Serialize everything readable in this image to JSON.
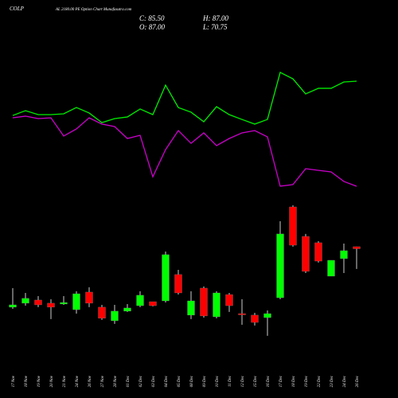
{
  "chart_data": {
    "type": "candlestick",
    "title": "COLP",
    "subtitle": "AL 2180.00 PE Option Chart Munafasutra.com",
    "ohlc_labels": {
      "close": "C: 85.50",
      "high": "H: 87.00",
      "open": "O: 87.00",
      "low": "L: 70.75"
    },
    "categories": [
      "17 Nov",
      "18 Nov",
      "19 Nov",
      "20 Nov",
      "21 Nov",
      "24 Nov",
      "26 Nov",
      "27 Nov",
      "28 Nov",
      "01 Dec",
      "02 Dec",
      "03 Dec",
      "04 Dec",
      "05 Dec",
      "08 Dec",
      "09 Dec",
      "10 Dec",
      "11 Dec",
      "12 Dec",
      "15 Dec",
      "16 Dec",
      "17 Dec",
      "18 Dec",
      "19 Dec",
      "22 Dec",
      "23 Dec",
      "24 Dec",
      "26 Dec"
    ],
    "open": [
      42.9,
      45.8,
      48.1,
      45.8,
      45.2,
      41.1,
      53.9,
      42.9,
      33.0,
      40.0,
      44.0,
      46.9,
      47.5,
      66.7,
      37.1,
      56.8,
      35.9,
      52.1,
      38.2,
      37.1,
      35.3,
      49.8,
      116.0,
      94.5,
      89.9,
      65.5,
      78.3,
      87
    ],
    "high": [
      56.8,
      53.3,
      51.0,
      48.7,
      51.0,
      54.5,
      57.4,
      44.6,
      44.6,
      45.2,
      54.5,
      46.9,
      83.5,
      70.1,
      54.5,
      58.0,
      54.5,
      53.3,
      48.7,
      38.8,
      40.5,
      105.6,
      117.2,
      96.3,
      91.0,
      77.1,
      89.3,
      87
    ],
    "low": [
      41.7,
      44.0,
      42.9,
      34.2,
      44.6,
      38.2,
      42.9,
      33.6,
      30.7,
      39.4,
      42.9,
      43.5,
      46.3,
      52.1,
      34.2,
      35.3,
      34.8,
      39.4,
      30.1,
      29.5,
      22.0,
      48.7,
      87.0,
      67.8,
      75.4,
      65.5,
      67.8,
      70.75
    ],
    "close": [
      44.6,
      49.3,
      44.6,
      42.9,
      46.3,
      52.7,
      45.8,
      34.8,
      40.0,
      42.3,
      51.6,
      44.0,
      81.2,
      53.3,
      47.5,
      36.5,
      53.3,
      44.0,
      37.6,
      31.8,
      38.2,
      96.3,
      88.1,
      69.0,
      76.5,
      77.1,
      84.1,
      85.5
    ],
    "up_color": "#00ff00",
    "down_color": "#ff0000",
    "series": [
      {
        "color": "#00ee00",
        "values": [
          182.7,
          186.2,
          183.3,
          183.3,
          183.9,
          188.5,
          184.5,
          177.5,
          180.4,
          181.6,
          187.4,
          183.3,
          204.8,
          188.5,
          185.1,
          178.1,
          189.1,
          183.3,
          179.8,
          176.4,
          179.8,
          214.1,
          209.4,
          198.4,
          202.5,
          202.5,
          207.1,
          207.7
        ]
      },
      {
        "color": "#cc00cc",
        "values": [
          181.0,
          182.2,
          180.4,
          181.0,
          167.7,
          172.9,
          181.0,
          176.4,
          174.6,
          165.9,
          168.2,
          138.0,
          157.8,
          171.7,
          162.4,
          170.0,
          160.7,
          165.9,
          170.0,
          171.7,
          167.1,
          131.1,
          132.3,
          143.9,
          142.7,
          141.5,
          134.6,
          131.1
        ]
      }
    ],
    "ylim": [
      11.5,
      266.9
    ]
  }
}
